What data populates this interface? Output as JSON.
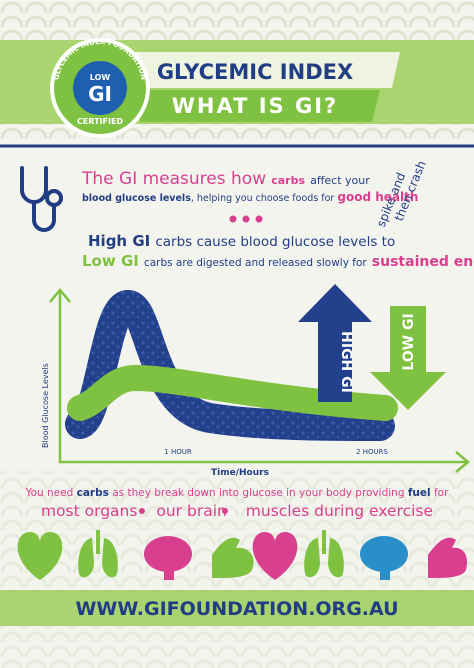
{
  "badge": {
    "ring": "GLYCEMIC INDEX FOUNDATION",
    "low": "LOW",
    "gi": "GI",
    "certified": "CERTIFIED"
  },
  "header": {
    "title": "GLYCEMIC INDEX",
    "subtitle": "WHAT IS GI?"
  },
  "intro": {
    "lead": "The GI measures how",
    "carbs": "carbs",
    "affect": "affect your",
    "levels": "blood glucose levels",
    "helping": ", helping you choose foods for",
    "good": "good health"
  },
  "spike": {
    "line1": "spike and",
    "line2": "then crash"
  },
  "high": {
    "term": "High GI",
    "rest": "carbs cause blood glucose levels to"
  },
  "low": {
    "term": "Low GI",
    "rest": "carbs are digested and released slowly for",
    "energy": "sustained energy"
  },
  "arrows": {
    "high": "HIGH GI",
    "low": "LOW GI"
  },
  "graph": {
    "y_label": "Blood Glucose Levels",
    "x_label": "Time/Hours",
    "hour1": "1 HOUR",
    "hour2": "2 HOURS"
  },
  "need": {
    "lead": "You need",
    "carbs": "carbs",
    "mid": "as they break down into glucose in your body providing",
    "fuel": "fuel",
    "end": "for"
  },
  "uses": [
    "most organs",
    "our brain",
    "muscles during exercise"
  ],
  "footer": {
    "url": "WWW.GIFOUNDATION.ORG.AU"
  }
}
